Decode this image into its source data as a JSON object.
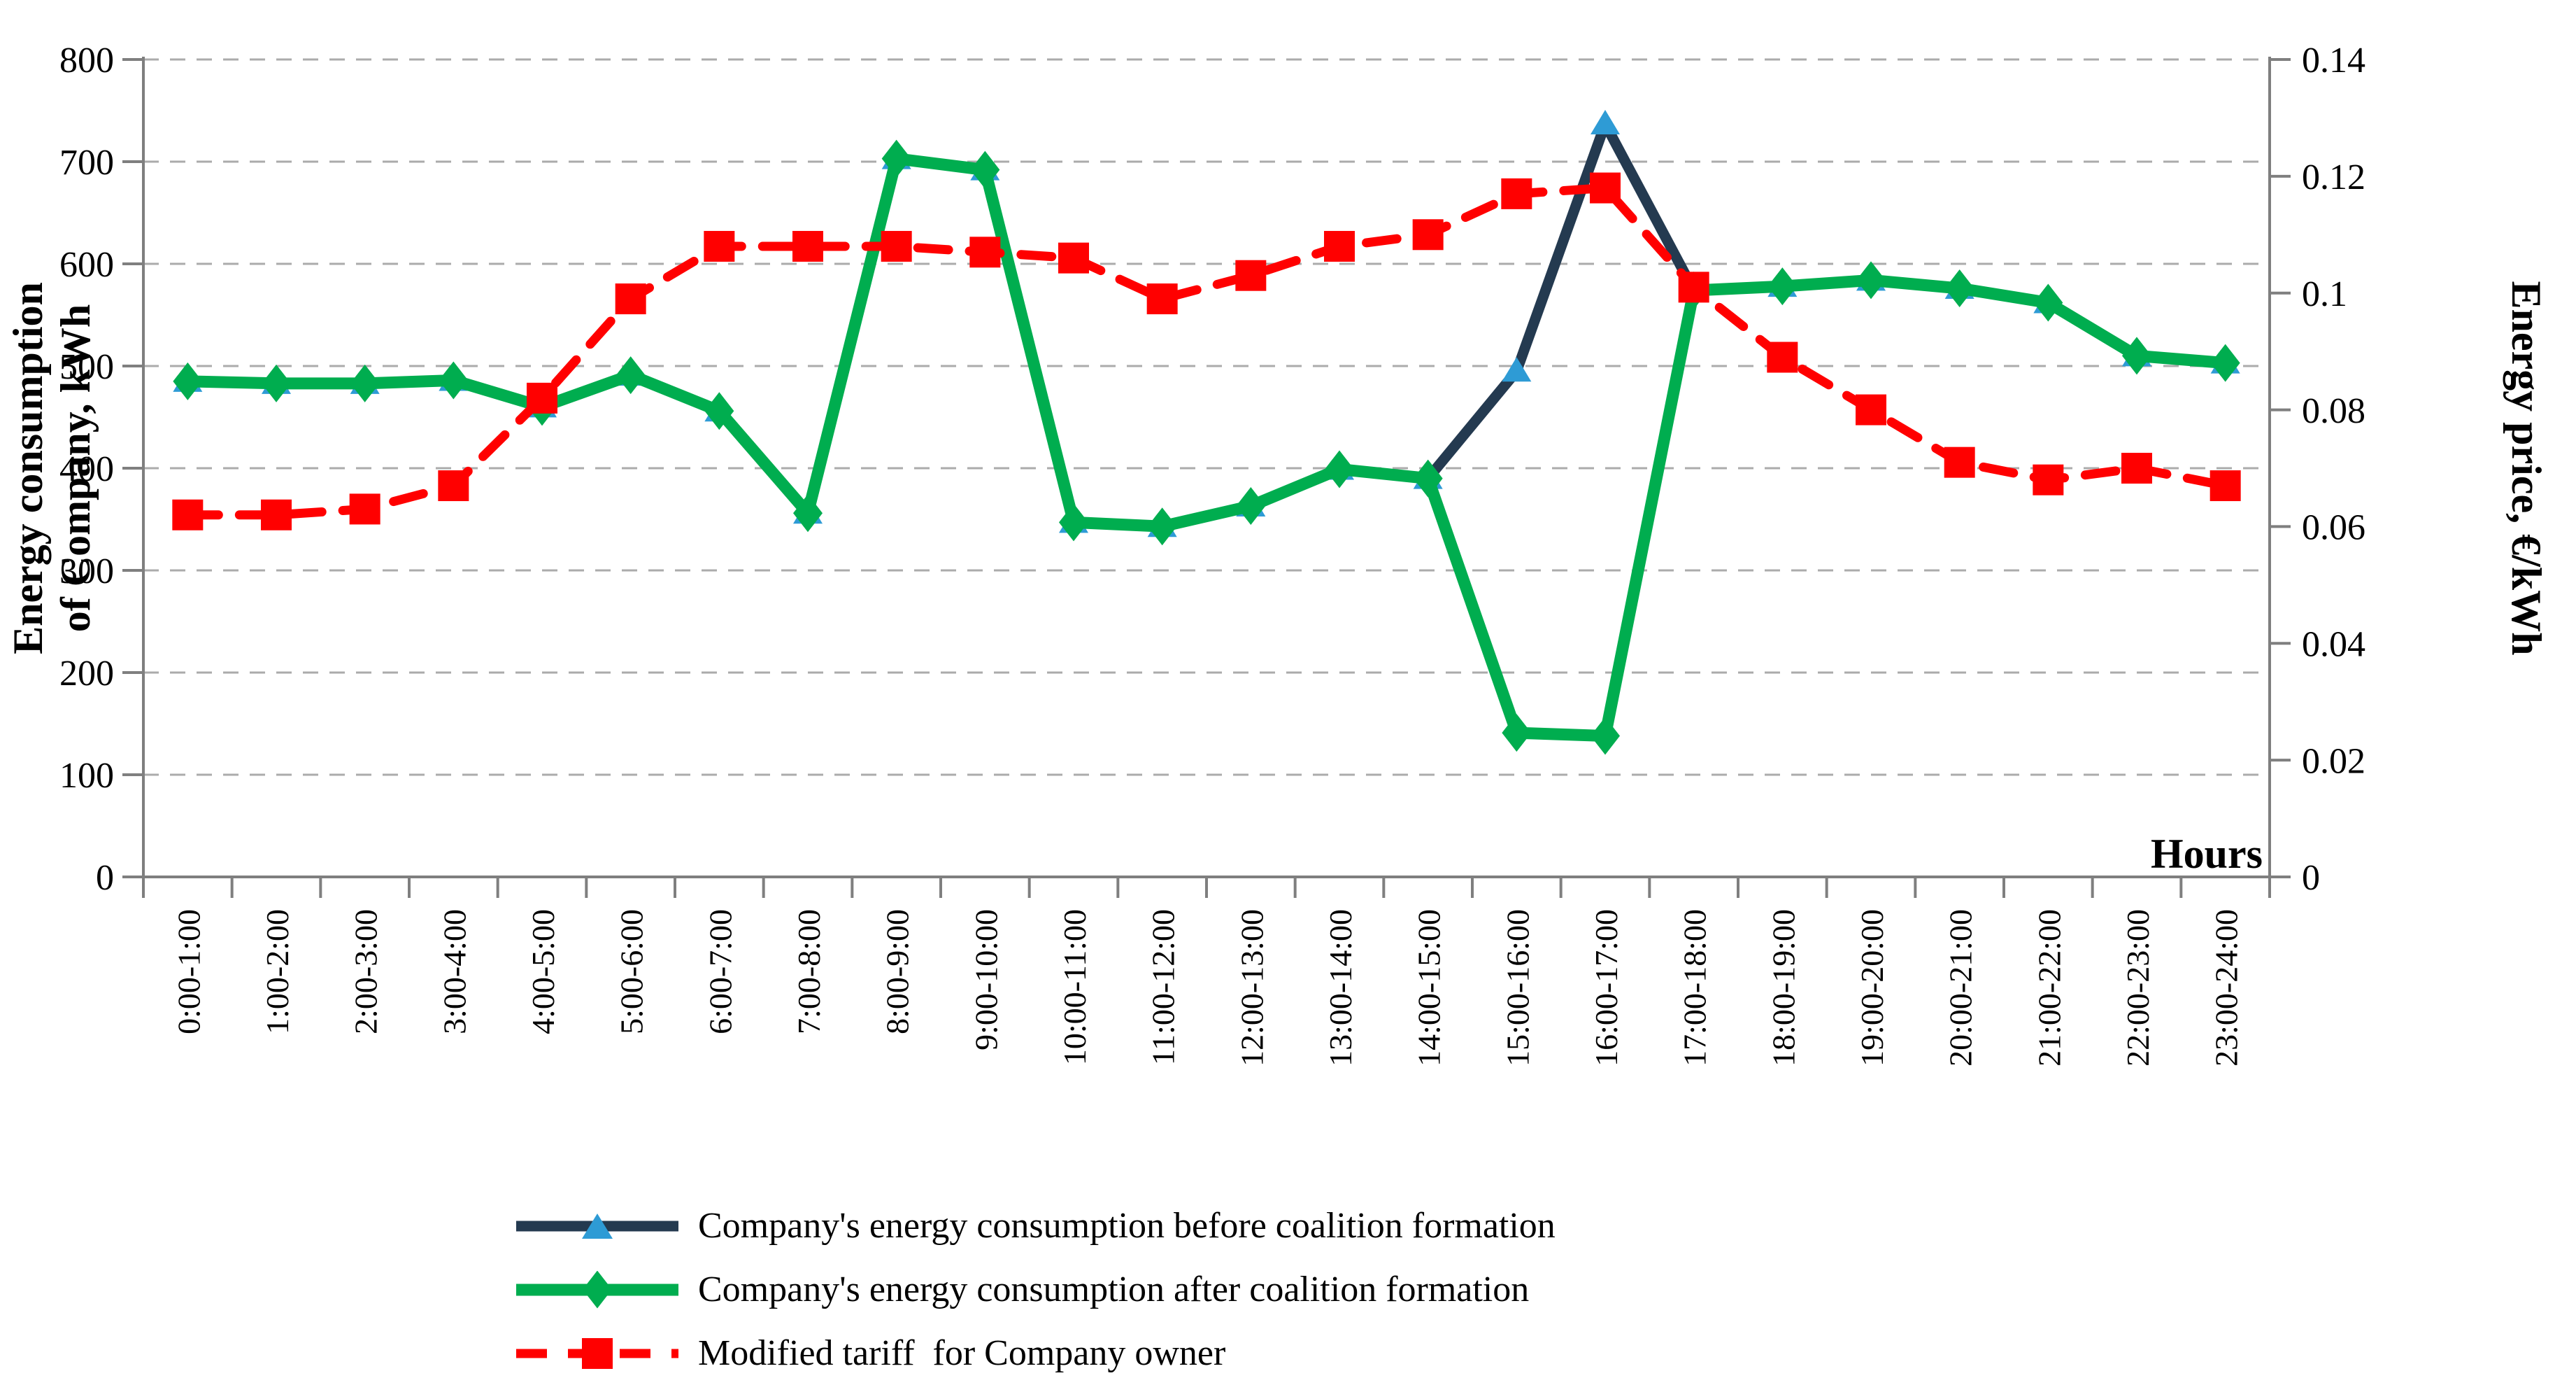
{
  "chart_data": {
    "type": "line",
    "title": "",
    "xlabel": "Hours",
    "ylabel_left_lines": [
      "Energy consumption",
      "of Company, kWh"
    ],
    "ylabel_right": "Energy price, €/kWh",
    "categories": [
      "0:00-1:00",
      "1:00-2:00",
      "2:00-3:00",
      "3:00-4:00",
      "4:00-5:00",
      "5:00-6:00",
      "6:00-7:00",
      "7:00-8:00",
      "8:00-9:00",
      "9:00-10:00",
      "10:00-11:00",
      "11:00-12:00",
      "12:00-13:00",
      "13:00-14:00",
      "14:00-15:00",
      "15:00-16:00",
      "16:00-17:00",
      "17:00-18:00",
      "18:00-19:00",
      "19:00-20:00",
      "20:00-21:00",
      "21:00-22:00",
      "22:00-23:00",
      "23:00-24:00"
    ],
    "x_tick_rotation": -90,
    "y_left": {
      "min": 0,
      "max": 800,
      "tick_step": 100,
      "tick_labels": [
        "0",
        "100",
        "200",
        "300",
        "400",
        "500",
        "600",
        "700",
        "800"
      ]
    },
    "y_right": {
      "min": 0,
      "max": 0.14,
      "tick_step": 0.02,
      "tick_labels": [
        "0",
        "0.02",
        "0.04",
        "0.06",
        "0.08",
        "0.1",
        "0.12",
        "0.14"
      ]
    },
    "grid": {
      "horizontal": true,
      "style": "dashed",
      "color": "#ABABAB"
    },
    "axis_color": "#7F7F7F",
    "legend_position": "bottom-left",
    "series": [
      {
        "name": "Company's energy consumption before coalition formation",
        "axis": "left",
        "marker": "triangle",
        "dash": false,
        "color": "#243A50",
        "marker_color": "#2E9BD5",
        "line_width": 15,
        "values": [
          485,
          483,
          483,
          486,
          460,
          491,
          456,
          356,
          703,
          692,
          347,
          343,
          363,
          399,
          390,
          495,
          737,
          574,
          578,
          584,
          576,
          562,
          510,
          503
        ]
      },
      {
        "name": "Company's energy consumption after coalition formation",
        "axis": "left",
        "marker": "diamond",
        "dash": false,
        "color": "#00AD4F",
        "marker_color": "#00AD4F",
        "line_width": 17,
        "values": [
          485,
          483,
          483,
          486,
          460,
          491,
          456,
          356,
          703,
          692,
          347,
          343,
          363,
          399,
          390,
          141,
          138,
          574,
          578,
          584,
          576,
          562,
          510,
          503
        ]
      },
      {
        "name": "Modified tariff  for Company owner",
        "axis": "right",
        "marker": "square",
        "dash": true,
        "color": "#FF0000",
        "marker_color": "#FF0000",
        "line_width": 13,
        "values": [
          0.062,
          0.062,
          0.063,
          0.067,
          0.082,
          0.099,
          0.108,
          0.108,
          0.108,
          0.107,
          0.106,
          0.099,
          0.103,
          0.108,
          0.11,
          0.117,
          0.118,
          0.101,
          0.089,
          0.08,
          0.071,
          0.068,
          0.07,
          0.067
        ]
      }
    ]
  }
}
